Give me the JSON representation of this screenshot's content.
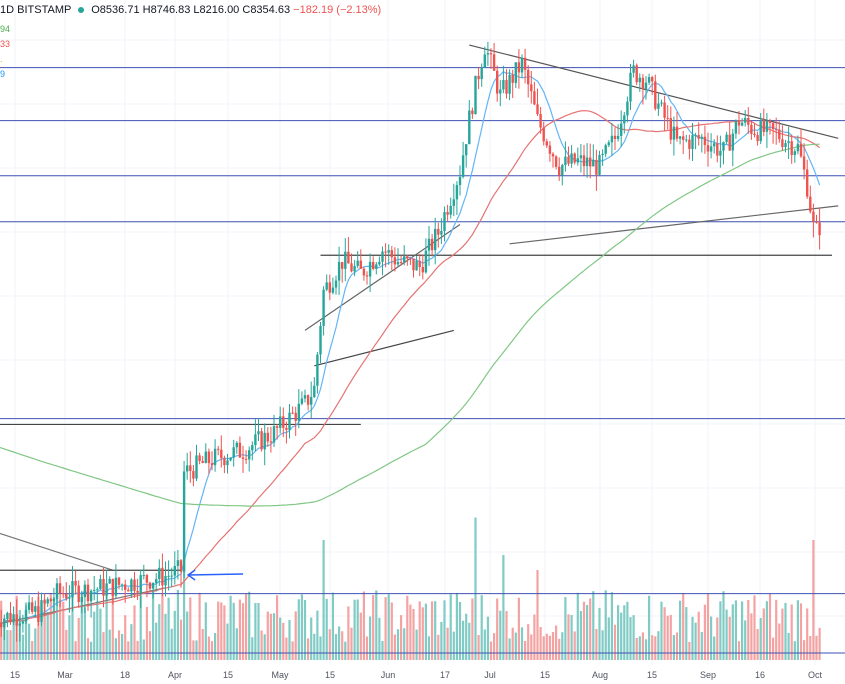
{
  "header": {
    "interval": "1D",
    "exchange": "BITSTAMP",
    "open": "O8536.71",
    "high": "H8746.83",
    "low": "L8216.00",
    "close": "C8354.63",
    "change": "−182.19 (−2.13%)"
  },
  "ma_legend": [
    {
      "text": "94",
      "color": "#4caf50"
    },
    {
      "text": "33",
      "color": "#ef5350"
    },
    {
      "text": ".",
      "color": "#ff9800"
    },
    {
      "text": "9",
      "color": "#2196f3"
    }
  ],
  "colors": {
    "up": "#26a69a",
    "down": "#ef5350",
    "vol_up": "#80cbc4",
    "vol_down": "#f4a3a2",
    "ma_fast": "#64b5f6",
    "ma_mid": "#e57373",
    "ma_slow": "#81c784",
    "hline": "#3f51b5",
    "trend": "#787b86"
  },
  "chart_data": {
    "type": "candlestick",
    "symbol": "BITSTAMP",
    "interval": "1D",
    "x_tick_labels": [
      "15",
      "Mar",
      "18",
      "Apr",
      "15",
      "May",
      "15",
      "Jun",
      "17",
      "Jul",
      "15",
      "Aug",
      "15",
      "Sep",
      "16",
      "Oct"
    ],
    "price_knots": [
      [
        0,
        3650
      ],
      [
        14,
        3700
      ],
      [
        20,
        3850
      ],
      [
        35,
        3900
      ],
      [
        45,
        3950
      ],
      [
        55,
        4000
      ],
      [
        60,
        4050
      ],
      [
        61,
        5000
      ],
      [
        70,
        5150
      ],
      [
        80,
        5250
      ],
      [
        90,
        5450
      ],
      [
        100,
        5800
      ],
      [
        103,
        6000
      ],
      [
        106,
        7400
      ],
      [
        112,
        7900
      ],
      [
        118,
        7700
      ],
      [
        125,
        8100
      ],
      [
        130,
        7900
      ],
      [
        137,
        7800
      ],
      [
        143,
        8400
      ],
      [
        150,
        9600
      ],
      [
        155,
        11500
      ],
      [
        158,
        12600
      ],
      [
        163,
        11300
      ],
      [
        170,
        12100
      ],
      [
        175,
        10700
      ],
      [
        182,
        9700
      ],
      [
        188,
        9800
      ],
      [
        195,
        9700
      ],
      [
        200,
        10300
      ],
      [
        206,
        11900
      ],
      [
        210,
        11700
      ],
      [
        215,
        10900
      ],
      [
        220,
        10200
      ],
      [
        228,
        10300
      ],
      [
        235,
        10000
      ],
      [
        240,
        10700
      ],
      [
        245,
        10500
      ],
      [
        252,
        10400
      ],
      [
        259,
        10100
      ],
      [
        262,
        9300
      ],
      [
        264,
        8500
      ],
      [
        266,
        8354
      ]
    ],
    "volume_spikes": [
      [
        155,
        0.95
      ],
      [
        164,
        0.7
      ],
      [
        106,
        0.8
      ],
      [
        264,
        0.8
      ],
      [
        61,
        0.7
      ],
      [
        175,
        0.6
      ]
    ],
    "horizontal_levels": [
      3850,
      5620,
      8600,
      9500,
      10700,
      12000
    ],
    "moving_averages": [
      "MA fast (blue)",
      "MA mid (red)",
      "MA slow (green)"
    ],
    "y_range": [
      3300,
      13300
    ],
    "x_range_days": [
      0,
      272
    ]
  }
}
